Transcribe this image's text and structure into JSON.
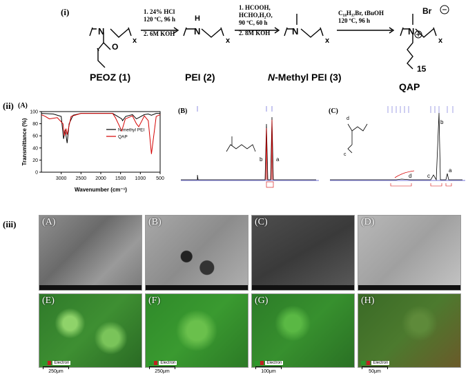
{
  "section_labels": {
    "s1": "(i)",
    "s2": "(ii)",
    "s3": "(iii)"
  },
  "scheme": {
    "step1": {
      "line1": "1. 24% HCl",
      "line2": "120 ºC, 96 h",
      "line3": "2. 6M KOH"
    },
    "step2": {
      "line1": "1. HCOOH,",
      "line2": "HCHO,H₂O,",
      "line3": "90 ºC, 60 h",
      "line4": "2. 8M KOH"
    },
    "step3": {
      "line1": "C₁₈H₃₇Br, tBuOH",
      "line2": "120 ºC, 96 h"
    },
    "compounds": [
      {
        "name": "PEOZ (1)"
      },
      {
        "name": "PEI (2)"
      },
      {
        "name_italic": "N",
        "name_rest": "-Methyl PEI (3)"
      },
      {
        "name": "QAP"
      }
    ],
    "atoms": {
      "N": "N",
      "O": "O",
      "H": "H",
      "Br": "Br",
      "x": "x",
      "sub15": "15"
    }
  },
  "nmr_labels": {
    "b": "b",
    "a": "a",
    "c": "c",
    "d": "d",
    "B": "(B)",
    "C": "(C)"
  },
  "chart_data": {
    "type": "line",
    "panel": "(A)",
    "xlabel": "Wavenumber (cm⁻¹)",
    "ylabel": "Transmittance (%)",
    "xlim": [
      3500,
      500
    ],
    "ylim": [
      0,
      100
    ],
    "xticks": [
      3000,
      2500,
      2000,
      1500,
      1000,
      500
    ],
    "yticks": [
      0,
      20,
      40,
      60,
      80,
      100
    ],
    "legend_position": "top-right",
    "series": [
      {
        "name": "N-methyl PEI",
        "color": "#000000",
        "x": [
          3500,
          3200,
          3000,
          2940,
          2900,
          2850,
          2800,
          2700,
          2500,
          2000,
          1700,
          1470,
          1450,
          1370,
          1200,
          1100,
          1040,
          900,
          800,
          720,
          600,
          500
        ],
        "y": [
          97,
          96,
          92,
          55,
          70,
          48,
          80,
          94,
          97,
          97,
          97,
          88,
          85,
          92,
          95,
          88,
          90,
          95,
          96,
          94,
          97,
          97
        ]
      },
      {
        "name": "QAP",
        "color": "#d40000",
        "x": [
          3500,
          3400,
          3300,
          3100,
          2955,
          2920,
          2880,
          2850,
          2750,
          2500,
          2000,
          1700,
          1630,
          1470,
          1380,
          1200,
          1100,
          1040,
          960,
          900,
          800,
          720,
          600,
          500
        ],
        "y": [
          95,
          92,
          88,
          90,
          80,
          60,
          72,
          62,
          92,
          97,
          97,
          97,
          90,
          68,
          88,
          93,
          80,
          75,
          85,
          93,
          85,
          30,
          92,
          95
        ]
      }
    ]
  },
  "sem_panels": [
    {
      "label": "(A)"
    },
    {
      "label": "(B)"
    },
    {
      "label": "(C)"
    },
    {
      "label": "(D)"
    }
  ],
  "eds_panels": [
    {
      "label": "(E)",
      "scale": "250μm",
      "legend": [
        "Electron"
      ]
    },
    {
      "label": "(F)",
      "scale": "250μm",
      "legend": [
        "Electron"
      ]
    },
    {
      "label": "(G)",
      "scale": "100μm",
      "legend": [
        "Electron"
      ]
    },
    {
      "label": "(H)",
      "scale": "50μm",
      "legend": [
        "Electron"
      ]
    }
  ],
  "colors": {
    "ink": "#000000",
    "qap": "#d40000",
    "eds_green": "#2f8a2a",
    "nmr_blue": "#4444cc"
  }
}
